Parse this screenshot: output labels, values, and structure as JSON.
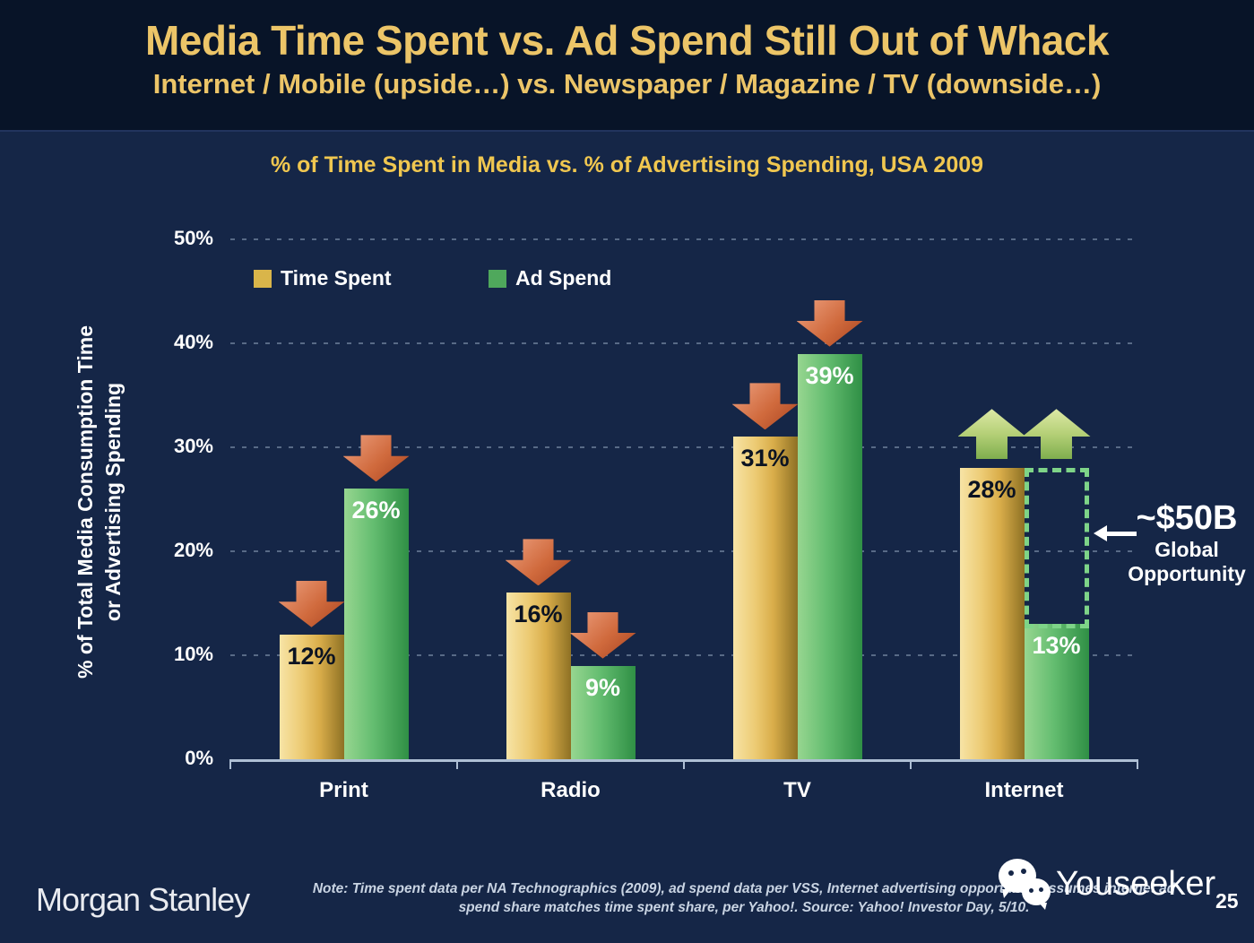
{
  "slide": {
    "title": "Media Time Spent vs. Ad Spend Still Out of Whack",
    "subtitle": "Internet / Mobile (upside…) vs. Newspaper / Magazine / TV (downside…)"
  },
  "chart_data": {
    "type": "bar",
    "title": "% of Time Spent in Media vs. % of Advertising Spending, USA 2009",
    "categories": [
      "Print",
      "Radio",
      "TV",
      "Internet"
    ],
    "series": [
      {
        "name": "Time Spent",
        "swatch": "#d9b54a",
        "values": [
          12,
          16,
          31,
          28
        ]
      },
      {
        "name": "Ad Spend",
        "swatch": "#4fa85c",
        "values": [
          26,
          9,
          39,
          13
        ]
      }
    ],
    "value_labels": [
      "12%",
      "16%",
      "31%",
      "28%",
      "26%",
      "9%",
      "39%",
      "13%"
    ],
    "ylabel_line1": "% of Total Media Consumption Time",
    "ylabel_line2": "or Advertising Spending",
    "yticks": [
      "0%",
      "10%",
      "20%",
      "30%",
      "40%",
      "50%"
    ],
    "ylim": [
      0,
      50
    ],
    "grid": "dotted-horizontal",
    "legend_position": "top-left-inside",
    "annotations": {
      "arrows": [
        {
          "category": "Print",
          "series": "Time Spent",
          "direction": "down"
        },
        {
          "category": "Print",
          "series": "Ad Spend",
          "direction": "down"
        },
        {
          "category": "Radio",
          "series": "Time Spent",
          "direction": "down"
        },
        {
          "category": "Radio",
          "series": "Ad Spend",
          "direction": "down"
        },
        {
          "category": "TV",
          "series": "Time Spent",
          "direction": "down"
        },
        {
          "category": "TV",
          "series": "Ad Spend",
          "direction": "down"
        },
        {
          "category": "Internet",
          "series": "Time Spent",
          "direction": "up"
        },
        {
          "category": "Internet",
          "series": "Ad Spend",
          "direction": "up"
        }
      ],
      "opportunity_box": {
        "category": "Internet",
        "from_series": "Time Spent",
        "to_series": "Ad Spend"
      },
      "callout": {
        "value": "~$50B",
        "line1": "Global",
        "line2": "Opportunity"
      }
    },
    "colors": {
      "time_spent_bar": "#e7c369",
      "ad_spend_bar": "#5eb96c",
      "down_arrow": "#c95f33",
      "up_arrow": "#a6c86a",
      "opportunity_border": "#7ed488",
      "title_gold": "#ecc568",
      "background": "#152647"
    }
  },
  "footer": {
    "brand": "Morgan Stanley",
    "note_line1": "Note: Time spent data per NA Technographics (2009), ad spend data per VSS, Internet advertising opportunity assumes internet ad",
    "note_line2": "spend share matches time spent share, per Yahoo!. Source: Yahoo! Investor Day, 5/10.",
    "watermark": "Youseeker",
    "page_number": "25"
  }
}
